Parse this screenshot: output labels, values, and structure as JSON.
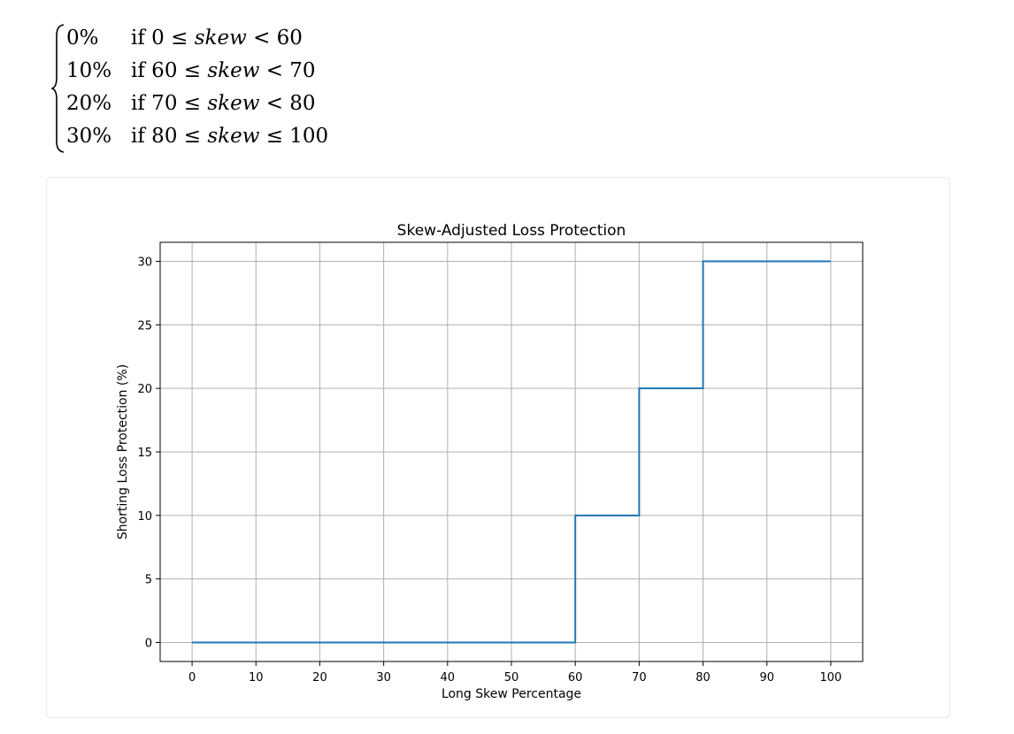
{
  "formula": {
    "rows": [
      {
        "value": "0%",
        "cond_prefix": "if 0 ≤ ",
        "var": "skew",
        "cond_suffix": " < 60"
      },
      {
        "value": "10%",
        "cond_prefix": "if 60 ≤ ",
        "var": "skew",
        "cond_suffix": " < 70"
      },
      {
        "value": "20%",
        "cond_prefix": "if 70 ≤ ",
        "var": "skew",
        "cond_suffix": " < 80"
      },
      {
        "value": "30%",
        "cond_prefix": "if 80 ≤ ",
        "var": "skew",
        "cond_suffix": " ≤ 100"
      }
    ]
  },
  "chart_data": {
    "type": "line",
    "step": "post",
    "title": "Skew-Adjusted Loss Protection",
    "xlabel": "Long Skew Percentage",
    "ylabel": "Shorting Loss Protection (%)",
    "xlim": [
      -5,
      105
    ],
    "ylim": [
      -1.5,
      31.5
    ],
    "xticks": [
      0,
      10,
      20,
      30,
      40,
      50,
      60,
      70,
      80,
      90,
      100
    ],
    "yticks": [
      0,
      5,
      10,
      15,
      20,
      25,
      30
    ],
    "grid": true,
    "line_color": "#1f77b4",
    "series": [
      {
        "x": [
          0,
          60,
          60,
          70,
          70,
          80,
          80,
          100
        ],
        "y": [
          0,
          0,
          10,
          10,
          20,
          20,
          30,
          30
        ]
      }
    ]
  }
}
